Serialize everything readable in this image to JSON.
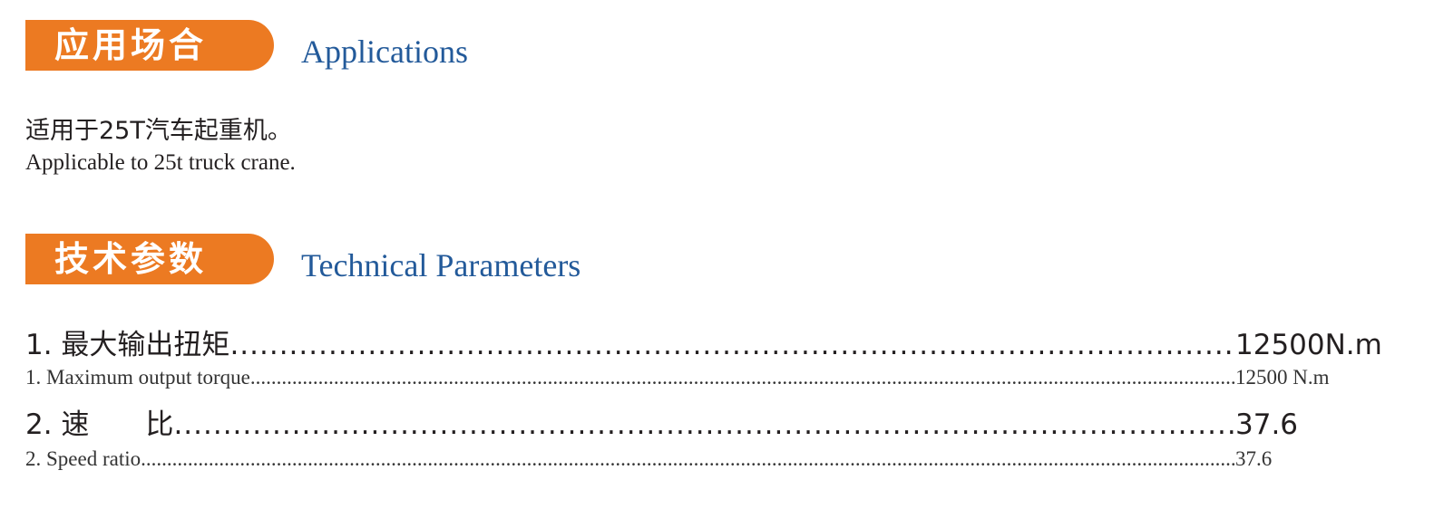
{
  "applications": {
    "title_cn": "应用场合",
    "title_en": "Applications",
    "text_cn": "适用于25T汽车起重机。",
    "text_en": "Applicable to 25t truck crane."
  },
  "technical": {
    "title_cn": "技术参数",
    "title_en": "Technical Parameters",
    "params": [
      {
        "label_cn": "1. 最大输出扭矩",
        "value_cn": "12500N.m",
        "label_en": "1.  Maximum output torque",
        "value_en": "12500 N.m"
      },
      {
        "label_cn": "2. 速　　比",
        "value_cn": "37.6",
        "label_en": "2.  Speed ratio",
        "value_en": "37.6"
      }
    ]
  },
  "colors": {
    "accent_orange": "#ec7a22",
    "heading_blue": "#235a9a"
  }
}
